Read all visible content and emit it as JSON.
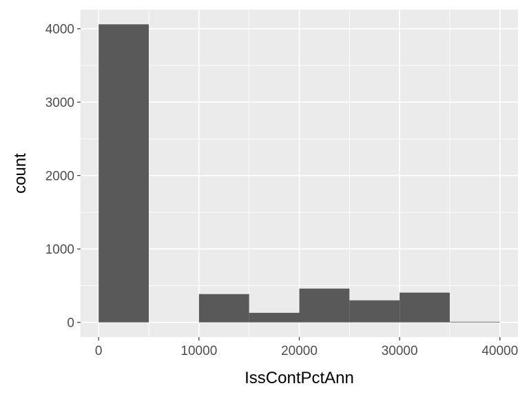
{
  "chart_data": {
    "type": "bar",
    "subtype": "histogram",
    "xlabel": "IssContPctAnn",
    "ylabel": "count",
    "xlim": [
      -1800,
      41800
    ],
    "ylim": [
      -200,
      4260
    ],
    "x_ticks": [
      0,
      10000,
      20000,
      30000,
      40000
    ],
    "y_ticks": [
      0,
      1000,
      2000,
      3000,
      4000
    ],
    "x_tick_labels": [
      "0",
      "10000",
      "20000",
      "30000",
      "40000"
    ],
    "y_tick_labels": [
      "0",
      "1000",
      "2000",
      "3000",
      "4000"
    ],
    "bins": [
      {
        "x0": 0,
        "x1": 5000,
        "count": 4060
      },
      {
        "x0": 5000,
        "x1": 10000,
        "count": 0
      },
      {
        "x0": 10000,
        "x1": 15000,
        "count": 385
      },
      {
        "x0": 15000,
        "x1": 20000,
        "count": 130
      },
      {
        "x0": 20000,
        "x1": 25000,
        "count": 460
      },
      {
        "x0": 25000,
        "x1": 30000,
        "count": 300
      },
      {
        "x0": 30000,
        "x1": 35000,
        "count": 405
      },
      {
        "x0": 35000,
        "x1": 40000,
        "count": 8
      }
    ],
    "grid": true,
    "colors": {
      "panel": "#ebebeb",
      "grid_major": "#ffffff",
      "bar_fill": "#595959",
      "tick_text": "#4d4d4d",
      "tick_mark": "#333333"
    }
  }
}
